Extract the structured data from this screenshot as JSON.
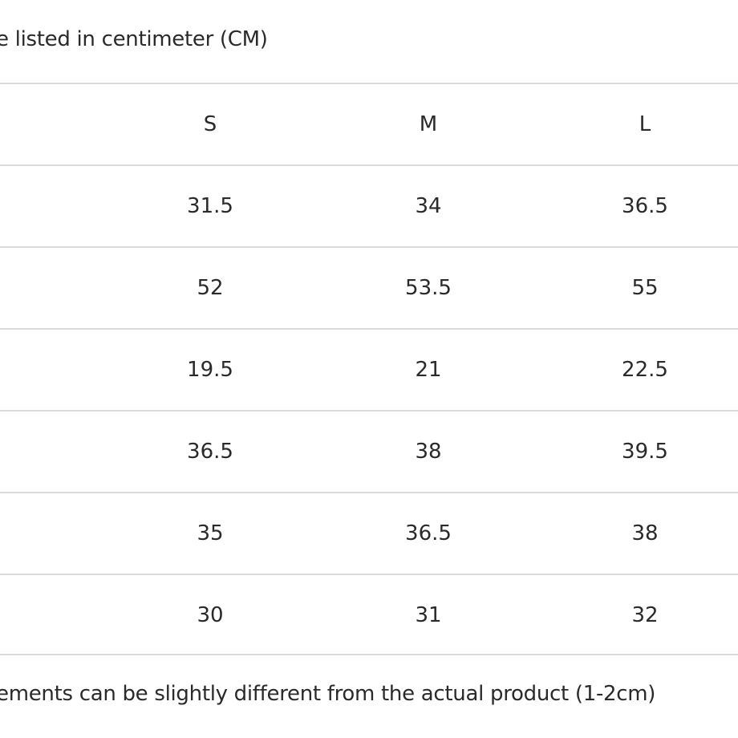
{
  "notes": {
    "top": "e listed in centimeter (CM)",
    "bottom": "ements can be slightly different from the actual product (1-2cm)"
  },
  "table": {
    "headers": [
      "S",
      "M",
      "L"
    ],
    "rows": [
      [
        "31.5",
        "34",
        "36.5"
      ],
      [
        "52",
        "53.5",
        "55"
      ],
      [
        "19.5",
        "21",
        "22.5"
      ],
      [
        "36.5",
        "38",
        "39.5"
      ],
      [
        "35",
        "36.5",
        "38"
      ],
      [
        "30",
        "31",
        "32"
      ]
    ]
  },
  "colors": {
    "text": "#2a2a2a",
    "divider": "#dcdcdc",
    "background": "#ffffff"
  }
}
